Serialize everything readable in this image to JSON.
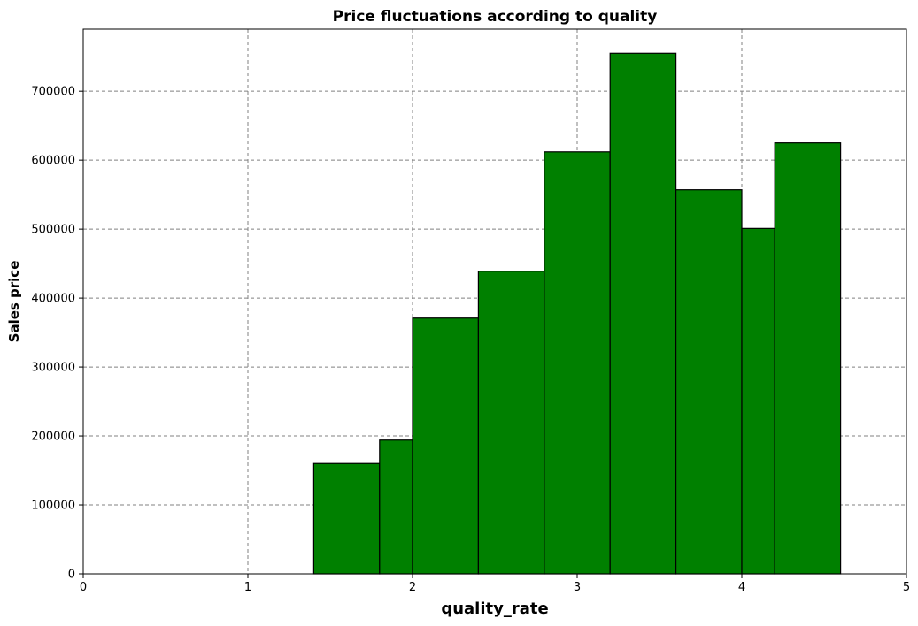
{
  "chart_data": {
    "type": "bar",
    "title": "Price fluctuations according to quality",
    "xlabel": "quality_rate",
    "ylabel": "Sales price",
    "xlim": [
      0,
      5
    ],
    "ylim": [
      0,
      790000
    ],
    "xticks": [
      0,
      1,
      2,
      3,
      4,
      5
    ],
    "xtick_labels": [
      "0",
      "1",
      "2",
      "3",
      "4",
      "5"
    ],
    "yticks": [
      0,
      100000,
      200000,
      300000,
      400000,
      500000,
      600000,
      700000
    ],
    "ytick_labels": [
      "0",
      "100000",
      "200000",
      "300000",
      "400000",
      "500000",
      "600000",
      "700000"
    ],
    "grid": true,
    "bar_color": "#008000",
    "edge_color": "#000000",
    "bars": [
      {
        "x0": 1.4,
        "x1": 1.8,
        "value": 160000
      },
      {
        "x0": 1.8,
        "x1": 2.0,
        "value": 194000
      },
      {
        "x0": 2.0,
        "x1": 2.4,
        "value": 371000
      },
      {
        "x0": 2.4,
        "x1": 2.8,
        "value": 439000
      },
      {
        "x0": 2.8,
        "x1": 3.2,
        "value": 612000
      },
      {
        "x0": 3.2,
        "x1": 3.6,
        "value": 755000
      },
      {
        "x0": 3.6,
        "x1": 4.0,
        "value": 557000
      },
      {
        "x0": 4.0,
        "x1": 4.2,
        "value": 501000
      },
      {
        "x0": 4.2,
        "x1": 4.6,
        "value": 625000
      }
    ]
  }
}
